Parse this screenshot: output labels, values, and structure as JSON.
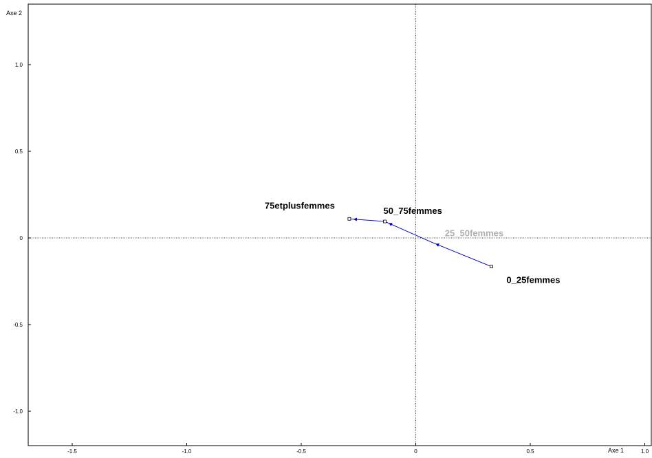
{
  "chart_data": {
    "type": "scatter",
    "title": "",
    "xlabel": "Axe 1",
    "ylabel": "Axe 2",
    "xlim": [
      -1.7,
      1.0
    ],
    "ylim": [
      -1.2,
      1.35
    ],
    "x_ticks": [
      {
        "value": -1.5,
        "label": "-1.5"
      },
      {
        "value": -1.0,
        "label": "-1.0"
      },
      {
        "value": -0.5,
        "label": "-0.5"
      },
      {
        "value": 0,
        "label": "0"
      },
      {
        "value": 0.5,
        "label": "0.5"
      },
      {
        "value": 1.0,
        "label": "1.0"
      }
    ],
    "y_ticks": [
      {
        "value": 1.0,
        "label": "1.0"
      },
      {
        "value": 0.5,
        "label": "0.5"
      },
      {
        "value": 0,
        "label": "0"
      },
      {
        "value": -0.5,
        "label": "-0.5"
      },
      {
        "value": -1.0,
        "label": "-1.0"
      }
    ],
    "reference_lines": {
      "x": 0,
      "y": 0,
      "style": "dotted"
    },
    "line_color": "#0000cc",
    "points": [
      {
        "label": "0_25femmes",
        "x": 0.33,
        "y": -0.165,
        "color": "#000000"
      },
      {
        "label": "25_50femmes",
        "x": 0.07,
        "y": -0.025,
        "color": "#b0b0b0"
      },
      {
        "label": "50_75femmes",
        "x": -0.135,
        "y": 0.095,
        "color": "#000000"
      },
      {
        "label": "75etplusfemmes",
        "x": -0.29,
        "y": 0.11,
        "color": "#000000"
      }
    ]
  }
}
